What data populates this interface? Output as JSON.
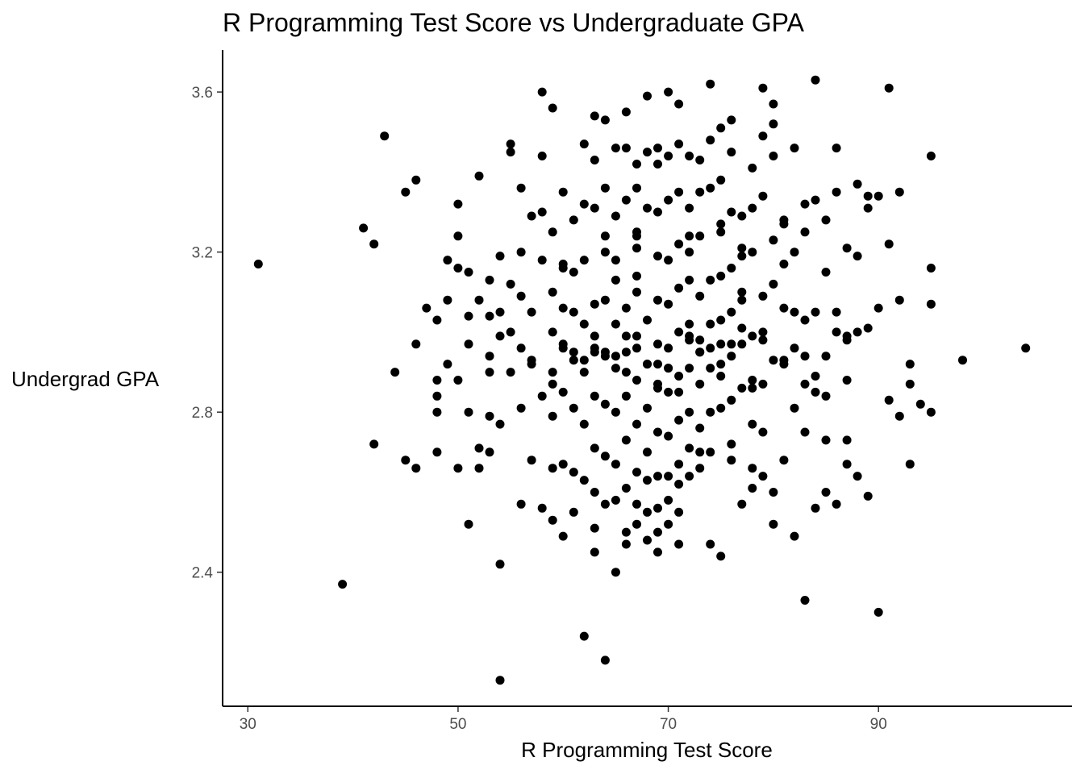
{
  "chart_data": {
    "type": "scatter",
    "title": "R Programming Test Score vs Undergraduate GPA",
    "xlabel": "R Programming Test Score",
    "ylabel": "Undergrad GPA",
    "xlim": [
      27.6,
      108.4
    ],
    "ylim": [
      2.065,
      3.705
    ],
    "x_ticks": [
      30,
      50,
      70,
      90
    ],
    "y_ticks": [
      2.4,
      2.8,
      3.2,
      3.6
    ],
    "x_tick_labels": [
      "30",
      "50",
      "70",
      "90"
    ],
    "y_tick_labels": [
      "2.4",
      "2.8",
      "3.2",
      "3.6"
    ],
    "grid": false,
    "point_color": "#000000",
    "x": [
      31,
      39,
      41,
      42,
      42,
      43,
      44,
      45,
      45,
      46,
      46,
      46,
      47,
      48,
      48,
      48,
      48,
      48,
      49,
      49,
      49,
      50,
      50,
      50,
      50,
      50,
      51,
      51,
      51,
      51,
      51,
      52,
      52,
      52,
      52,
      53,
      53,
      53,
      53,
      53,
      53,
      54,
      54,
      54,
      54,
      54,
      54,
      55,
      55,
      55,
      55,
      55,
      56,
      56,
      56,
      56,
      56,
      56,
      57,
      57,
      57,
      57,
      58,
      58,
      58,
      58,
      58,
      58,
      59,
      59,
      59,
      59,
      59,
      59,
      59,
      59,
      60,
      60,
      60,
      60,
      60,
      60,
      60,
      60,
      61,
      61,
      61,
      61,
      61,
      61,
      61,
      62,
      62,
      62,
      62,
      62,
      62,
      62,
      62,
      63,
      63,
      63,
      63,
      63,
      63,
      63,
      63,
      63,
      63,
      64,
      64,
      64,
      64,
      64,
      64,
      64,
      64,
      64,
      64,
      65,
      65,
      65,
      65,
      65,
      65,
      65,
      65,
      65,
      65,
      66,
      66,
      66,
      66,
      66,
      66,
      66,
      66,
      66,
      66,
      67,
      67,
      67,
      67,
      67,
      67,
      67,
      67,
      67,
      67,
      67,
      67,
      68,
      68,
      68,
      68,
      68,
      68,
      68,
      68,
      68,
      68,
      69,
      69,
      69,
      69,
      69,
      69,
      69,
      69,
      69,
      69,
      69,
      69,
      70,
      70,
      70,
      70,
      70,
      70,
      70,
      70,
      70,
      70,
      70,
      71,
      71,
      71,
      71,
      71,
      71,
      71,
      71,
      71,
      71,
      71,
      71,
      72,
      72,
      72,
      72,
      72,
      72,
      72,
      72,
      72,
      72,
      73,
      73,
      73,
      73,
      73,
      73,
      73,
      73,
      73,
      74,
      74,
      74,
      74,
      74,
      74,
      74,
      74,
      74,
      75,
      75,
      75,
      75,
      75,
      75,
      75,
      75,
      75,
      76,
      76,
      76,
      76,
      76,
      76,
      76,
      76,
      76,
      77,
      77,
      77,
      77,
      77,
      77,
      77,
      77,
      78,
      78,
      78,
      78,
      78,
      78,
      78,
      78,
      79,
      79,
      79,
      79,
      79,
      79,
      79,
      80,
      80,
      80,
      80,
      80,
      80,
      80,
      81,
      81,
      81,
      81,
      81,
      81,
      82,
      82,
      82,
      82,
      82,
      83,
      83,
      83,
      83,
      83,
      83,
      84,
      84,
      84,
      84,
      84,
      85,
      85,
      85,
      85,
      85,
      86,
      86,
      86,
      86,
      87,
      87,
      87,
      87,
      87,
      88,
      88,
      88,
      89,
      89,
      89,
      89,
      90,
      90,
      90,
      91,
      91,
      91,
      92,
      92,
      92,
      93,
      93,
      93,
      94,
      95,
      95,
      95,
      95,
      98,
      104,
      75,
      69,
      79,
      85,
      63,
      67,
      72,
      88,
      57,
      61,
      66,
      68,
      71,
      74,
      77,
      80,
      84,
      62,
      65,
      70,
      73,
      76,
      81,
      86,
      60,
      64,
      67,
      70,
      73,
      78,
      82,
      87,
      59,
      63,
      66,
      69,
      72,
      75,
      79,
      83
    ],
    "y": [
      3.17,
      2.37,
      3.26,
      3.22,
      2.72,
      3.49,
      2.9,
      3.35,
      2.68,
      3.38,
      2.97,
      2.66,
      3.06,
      3.03,
      2.88,
      2.84,
      2.8,
      2.7,
      3.18,
      3.08,
      2.92,
      3.32,
      3.24,
      3.16,
      2.88,
      2.66,
      3.15,
      3.04,
      2.97,
      2.8,
      2.52,
      3.39,
      3.08,
      2.71,
      2.66,
      3.13,
      3.04,
      2.94,
      2.9,
      2.79,
      2.7,
      3.19,
      3.05,
      2.99,
      2.77,
      2.42,
      2.13,
      3.47,
      3.45,
      3.12,
      3.0,
      2.9,
      3.36,
      3.2,
      3.09,
      2.96,
      2.81,
      2.57,
      3.29,
      3.05,
      2.92,
      2.68,
      3.44,
      3.3,
      3.18,
      2.84,
      2.56,
      3.6,
      3.1,
      3.0,
      2.87,
      2.79,
      2.66,
      2.53,
      3.56,
      3.25,
      3.16,
      3.06,
      2.96,
      2.85,
      2.67,
      2.49,
      3.35,
      3.17,
      3.05,
      2.93,
      2.81,
      2.65,
      2.55,
      3.28,
      3.15,
      3.02,
      2.9,
      2.77,
      2.63,
      2.24,
      3.47,
      3.32,
      3.18,
      3.07,
      2.96,
      2.84,
      2.71,
      2.6,
      2.51,
      2.45,
      3.54,
      3.43,
      3.31,
      3.2,
      3.08,
      2.95,
      2.82,
      2.69,
      2.57,
      2.18,
      3.53,
      3.36,
      3.24,
      3.13,
      3.02,
      2.91,
      2.8,
      2.67,
      2.58,
      2.4,
      3.46,
      3.29,
      3.18,
      3.06,
      2.95,
      2.84,
      2.73,
      2.61,
      2.5,
      2.47,
      3.55,
      3.46,
      3.33,
      3.21,
      3.1,
      2.99,
      2.88,
      2.77,
      2.65,
      2.57,
      2.52,
      3.42,
      3.36,
      3.25,
      3.14,
      3.03,
      2.92,
      2.81,
      2.7,
      2.63,
      2.55,
      2.48,
      3.59,
      3.45,
      3.31,
      3.19,
      3.08,
      2.97,
      2.86,
      2.75,
      2.64,
      2.56,
      2.5,
      2.45,
      3.46,
      3.42,
      3.3,
      3.18,
      3.07,
      2.96,
      2.85,
      2.74,
      2.64,
      2.58,
      2.52,
      3.6,
      3.44,
      3.33,
      3.22,
      3.11,
      3.0,
      2.89,
      2.78,
      2.67,
      2.62,
      2.55,
      2.47,
      3.57,
      3.47,
      3.35,
      3.24,
      3.13,
      3.02,
      2.91,
      2.8,
      2.71,
      2.64,
      3.44,
      3.31,
      3.2,
      3.09,
      2.98,
      2.87,
      2.76,
      2.7,
      2.66,
      3.43,
      3.35,
      3.24,
      3.13,
      3.02,
      2.91,
      2.8,
      2.7,
      2.47,
      3.62,
      3.48,
      3.36,
      3.25,
      3.14,
      3.03,
      2.92,
      2.81,
      2.44,
      3.51,
      3.38,
      3.27,
      3.16,
      3.05,
      2.94,
      2.83,
      2.72,
      2.68,
      3.53,
      3.45,
      3.3,
      3.19,
      3.08,
      2.97,
      2.86,
      2.57,
      3.29,
      3.21,
      3.1,
      2.99,
      2.88,
      2.77,
      2.66,
      2.61,
      3.41,
      3.31,
      3.2,
      3.09,
      2.98,
      2.87,
      2.64,
      3.61,
      3.49,
      3.34,
      3.23,
      3.12,
      2.6,
      2.52,
      3.57,
      3.52,
      3.44,
      3.27,
      2.93,
      2.68,
      3.28,
      3.17,
      3.06,
      2.81,
      2.49,
      3.46,
      3.2,
      3.05,
      2.87,
      2.75,
      2.33,
      3.32,
      3.25,
      3.03,
      2.85,
      2.56,
      3.63,
      3.33,
      3.05,
      2.84,
      2.6,
      3.28,
      3.15,
      2.73,
      2.57,
      3.46,
      3.35,
      3.05,
      2.88,
      2.73,
      3.21,
      2.99,
      2.67,
      3.37,
      3.19,
      2.64,
      2.59,
      3.34,
      3.31,
      3.01,
      3.34,
      3.06,
      2.3,
      3.61,
      3.22,
      2.83,
      3.35,
      3.08,
      2.79,
      2.67,
      2.92,
      2.87,
      2.82,
      2.8,
      3.16,
      3.44,
      3.07,
      2.93,
      2.96,
      2.89,
      2.87,
      2.75,
      2.94,
      2.99,
      3.24,
      2.99,
      3.0,
      2.93,
      2.95,
      2.9,
      2.92,
      2.85,
      2.96,
      3.01,
      2.93,
      2.89,
      2.93,
      2.94,
      2.91,
      2.95,
      2.97,
      2.92,
      3.0,
      2.97,
      2.94,
      2.96,
      2.91,
      2.95,
      2.86,
      2.96,
      2.98,
      2.9,
      2.95,
      2.99,
      2.92,
      2.98,
      2.97,
      3.0,
      2.94
    ]
  }
}
